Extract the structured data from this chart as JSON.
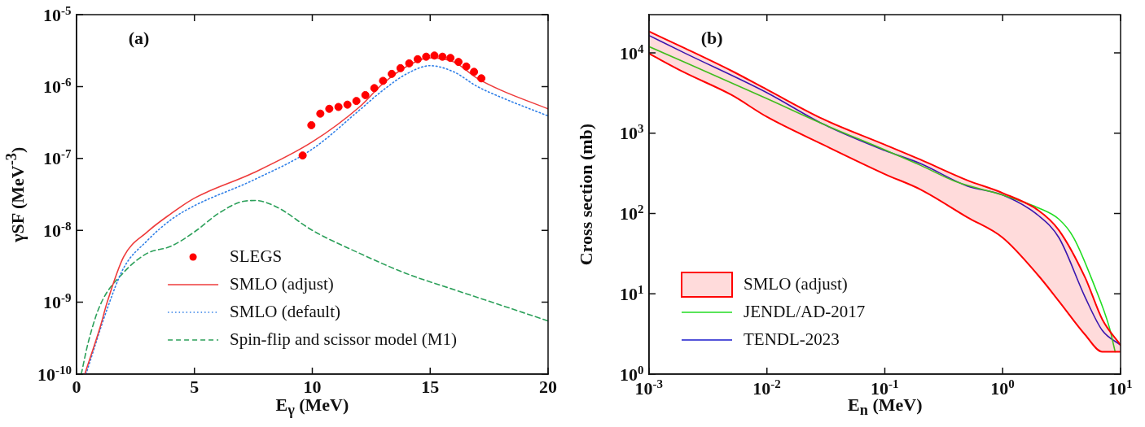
{
  "chart_data": [
    {
      "type": "line",
      "title": "(a)",
      "xlabel": "E$_{γ}$ (MeV)",
      "ylabel": "γSF (MeV$^{-3}$)",
      "log": "y",
      "grid": false,
      "legend": "bottom",
      "xlim": [
        0,
        20
      ],
      "xticks": [
        0,
        5,
        10,
        15,
        20
      ],
      "ylim": [
        1e-10,
        1e-05
      ],
      "yticks": [
        {
          "value": 1e-10,
          "label": "10$^{-10}$"
        },
        {
          "value": 1e-09,
          "label": "10$^{-9}$"
        },
        {
          "value": 1e-08,
          "label": "10$^{-8}$"
        },
        {
          "value": 1e-07,
          "label": "10$^{-7}$"
        },
        {
          "value": 1e-06,
          "label": "10$^{-6}$"
        },
        {
          "value": 1e-05,
          "label": "10$^{-5}$"
        }
      ],
      "series": [
        {
          "name": "SLEGS",
          "type": "scatter",
          "marker": "circle",
          "color": "#ff0000",
          "x": [
            9.59,
            9.96,
            10.34,
            10.72,
            11.11,
            11.49,
            11.87,
            12.25,
            12.63,
            13.0,
            13.37,
            13.74,
            14.11,
            14.47,
            14.83,
            15.18,
            15.52,
            15.86,
            16.2,
            16.53,
            16.86,
            17.17
          ],
          "values": [
            1.1e-07,
            2.9e-07,
            4.2e-07,
            4.9e-07,
            5.2e-07,
            5.6e-07,
            6.3e-07,
            7.6e-07,
            9.5e-07,
            1.2e-06,
            1.5e-06,
            1.8e-06,
            2.1e-06,
            2.4e-06,
            2.6e-06,
            2.7e-06,
            2.6e-06,
            2.5e-06,
            2.2e-06,
            1.9e-06,
            1.6e-06,
            1.3e-06
          ]
        },
        {
          "name": "SMLO (adjust)",
          "line_style": "solid",
          "color": "#ee3b3b",
          "x": [
            0.35,
            1,
            1.3,
            2,
            3,
            4,
            5,
            7.5,
            10,
            12,
            13,
            14,
            15,
            16,
            17,
            18,
            20
          ],
          "values": [
            1e-10,
            4.5e-10,
            1e-09,
            4.3e-09,
            9.5e-09,
            1.7e-08,
            2.8e-08,
            6.3e-08,
            1.7e-07,
            5.2e-07,
            1.1e-06,
            1.9e-06,
            2.5e-06,
            2.2e-06,
            1.3e-06,
            8.9e-07,
            4.9e-07
          ]
        },
        {
          "name": "SMLO (default)",
          "line_style": "dotted",
          "color": "#2f7fe8",
          "x": [
            0.4,
            1.3,
            2,
            3,
            4,
            5,
            7.5,
            10,
            12,
            13,
            14,
            15,
            16,
            17,
            18,
            20
          ],
          "values": [
            1e-10,
            8.1e-10,
            3e-09,
            7.2e-09,
            1.4e-08,
            2.2e-08,
            5e-08,
            1.35e-07,
            4.7e-07,
            8.9e-07,
            1.5e-06,
            1.95e-06,
            1.6e-06,
            1e-06,
            7.1e-07,
            3.9e-07
          ]
        },
        {
          "name": "Spin-flip and scissor model (M1)",
          "line_style": "dashed",
          "color": "#2ca05a",
          "x": [
            0.2,
            0.5,
            1,
            2,
            3,
            4,
            5,
            6,
            7,
            7.6,
            8.5,
            10,
            12,
            14,
            16,
            18,
            20
          ],
          "values": [
            1e-10,
            2.8e-10,
            9.1e-10,
            2.6e-09,
            4.8e-09,
            6e-09,
            9.5e-09,
            1.7e-08,
            2.5e-08,
            2.6e-08,
            2.1e-08,
            1e-08,
            4.8e-09,
            2.5e-09,
            1.5e-09,
            9.1e-10,
            5.5e-10
          ]
        }
      ]
    },
    {
      "type": "line",
      "title": "(b)",
      "xlabel": "E$_{n}$ (MeV)",
      "ylabel": "Cross section (mb)",
      "log": "xy",
      "grid": false,
      "legend": "bottom left",
      "xlim": [
        0.001,
        10
      ],
      "xticks": [
        {
          "value": 0.001,
          "label": "10$^{-3}$"
        },
        {
          "value": 0.01,
          "label": "10$^{-2}$"
        },
        {
          "value": 0.1,
          "label": "10$^{-1}$"
        },
        {
          "value": 1,
          "label": "10$^{0}$"
        },
        {
          "value": 10,
          "label": "10$^{1}$"
        }
      ],
      "ylim": [
        1,
        30000
      ],
      "yticks": [
        {
          "value": 1,
          "label": "10$^{0}$"
        },
        {
          "value": 10,
          "label": "10$^{1}$"
        },
        {
          "value": 100,
          "label": "10$^{2}$"
        },
        {
          "value": 1000,
          "label": "10$^{3}$"
        },
        {
          "value": 10000,
          "label": "10$^{4}$"
        }
      ],
      "series": [
        {
          "name": "SMLO (adjust)",
          "line_style": "solid",
          "color": "#ff0000",
          "x": [
            0.001,
            0.002,
            0.005,
            0.01,
            0.03,
            0.1,
            0.2,
            0.5,
            1,
            2,
            3,
            5,
            7,
            10
          ],
          "values": [
            18500,
            11500,
            6000,
            3500,
            1500,
            720,
            470,
            260,
            180,
            110,
            62,
            16,
            4.8,
            2.3
          ],
          "upper": [
            18500,
            11500,
            6000,
            3500,
            1500,
            720,
            470,
            260,
            180,
            110,
            62,
            16,
            4.8,
            2.3
          ],
          "lower": [
            9800,
            5700,
            3000,
            1600,
            720,
            310,
            200,
            90,
            50,
            17,
            8.1,
            3.1,
            1.9,
            1.9
          ]
        },
        {
          "line_style": "solid",
          "color": "#ff0000",
          "x": [
            0.001,
            0.002,
            0.005,
            0.01,
            0.03,
            0.1,
            0.2,
            0.5,
            1,
            2,
            3,
            5,
            7,
            10
          ],
          "values": [
            9800,
            5700,
            3000,
            1600,
            720,
            310,
            200,
            90,
            50,
            17,
            8.1,
            3.1,
            1.9,
            1.9
          ]
        },
        {
          "name": "JENDL/AD-2017",
          "line_style": "solid",
          "color": "#22dd22",
          "x": [
            0.001,
            0.01,
            0.03,
            0.1,
            0.2,
            0.4,
            1,
            2,
            3,
            4,
            6,
            8,
            9
          ],
          "values": [
            12000,
            2700,
            1300,
            620,
            400,
            250,
            170,
            118,
            85,
            50,
            12.6,
            3.9,
            1.9
          ]
        },
        {
          "name": "TENDL-2023",
          "line_style": "solid",
          "color": "#1a1acc",
          "x": [
            0.001,
            0.002,
            0.01,
            0.03,
            0.1,
            0.2,
            0.5,
            1,
            2,
            3,
            5,
            7,
            10
          ],
          "values": [
            16500,
            10000,
            3200,
            1300,
            610,
            420,
            220,
            170,
            95,
            50,
            9.1,
            3.5,
            2.3
          ]
        }
      ]
    }
  ]
}
